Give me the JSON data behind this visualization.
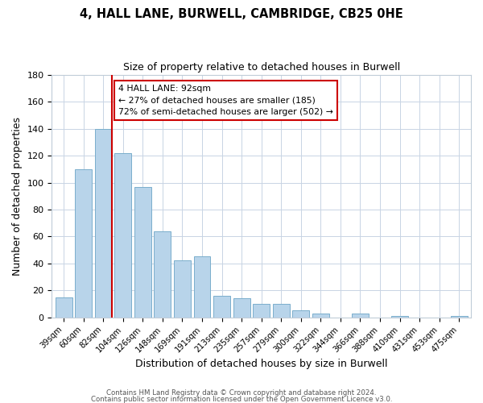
{
  "title": "4, HALL LANE, BURWELL, CAMBRIDGE, CB25 0HE",
  "subtitle": "Size of property relative to detached houses in Burwell",
  "xlabel": "Distribution of detached houses by size in Burwell",
  "ylabel": "Number of detached properties",
  "categories": [
    "39sqm",
    "60sqm",
    "82sqm",
    "104sqm",
    "126sqm",
    "148sqm",
    "169sqm",
    "191sqm",
    "213sqm",
    "235sqm",
    "257sqm",
    "279sqm",
    "300sqm",
    "322sqm",
    "344sqm",
    "366sqm",
    "388sqm",
    "410sqm",
    "431sqm",
    "453sqm",
    "475sqm"
  ],
  "values": [
    15,
    110,
    140,
    122,
    97,
    64,
    42,
    45,
    16,
    14,
    10,
    10,
    5,
    3,
    0,
    3,
    0,
    1,
    0,
    0,
    1
  ],
  "bar_color": "#b8d4ea",
  "bar_edge_color": "#7aaecc",
  "redline_index": 2,
  "annotation_line1": "4 HALL LANE: 92sqm",
  "annotation_line2": "← 27% of detached houses are smaller (185)",
  "annotation_line3": "72% of semi-detached houses are larger (502) →",
  "annotation_box_color": "#ffffff",
  "annotation_box_edge_color": "#cc0000",
  "ylim": [
    0,
    180
  ],
  "yticks": [
    0,
    20,
    40,
    60,
    80,
    100,
    120,
    140,
    160,
    180
  ],
  "footer1": "Contains HM Land Registry data © Crown copyright and database right 2024.",
  "footer2": "Contains public sector information licensed under the Open Government Licence v3.0.",
  "background_color": "#ffffff",
  "grid_color": "#c8d4e4"
}
